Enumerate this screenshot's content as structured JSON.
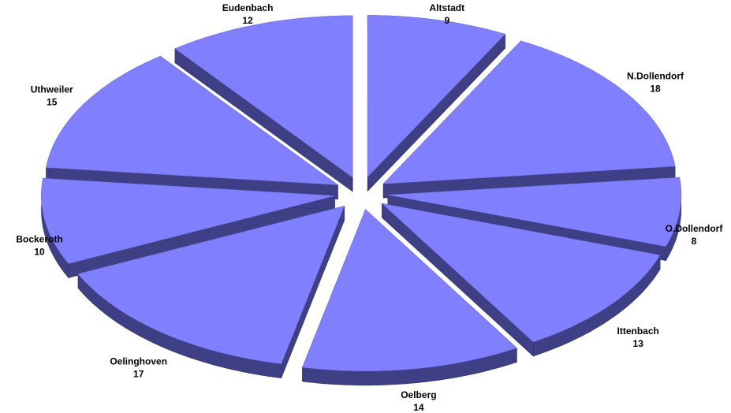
{
  "chart_data": {
    "type": "pie",
    "style": "3d-exploded",
    "legend": "none",
    "colors": {
      "top": "#8080ff",
      "side": "#3f3f86",
      "edge": "#303070"
    },
    "slices": [
      {
        "label": "Altstadt",
        "value": 9
      },
      {
        "label": "N.Dollendorf",
        "value": 18
      },
      {
        "label": "O.Dollendorf",
        "value": 8
      },
      {
        "label": "Ittenbach",
        "value": 13
      },
      {
        "label": "Oelberg",
        "value": 14
      },
      {
        "label": "Oelinghoven",
        "value": 17
      },
      {
        "label": "Bockeroth",
        "value": 10
      },
      {
        "label": "Uthweiler",
        "value": 15
      },
      {
        "label": "Eudenbach",
        "value": 12
      }
    ]
  }
}
